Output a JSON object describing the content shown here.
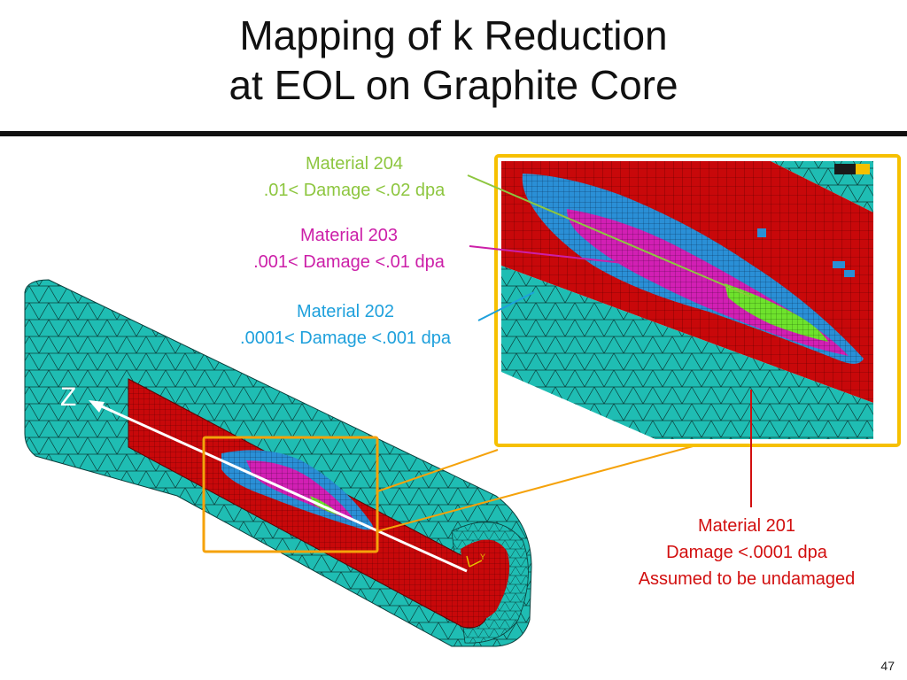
{
  "slide": {
    "title_line1": "Mapping of k Reduction",
    "title_line2": "at EOL on Graphite Core",
    "page_number": "47"
  },
  "labels": {
    "m204_name": "Material 204",
    "m204_range": ".01< Damage <.02 dpa",
    "m203_name": "Material 203",
    "m203_range": ".001< Damage <.01 dpa",
    "m202_name": "Material 202",
    "m202_range": ".0001< Damage <.001 dpa",
    "m201_name": "Material 201",
    "m201_range": "Damage <.0001 dpa",
    "m201_note": "Assumed to be undamaged"
  },
  "figure": {
    "axis_label": "Z",
    "colors": {
      "mesh_teal": "#1fbdb3",
      "core_red": "#c8080a",
      "damage_blue": "#2a8fd6",
      "damage_magenta": "#d21fb4",
      "damage_green": "#6ee22c",
      "callout_orange": "#f5a20a",
      "zoom_border_gold": "#f6c000"
    }
  }
}
